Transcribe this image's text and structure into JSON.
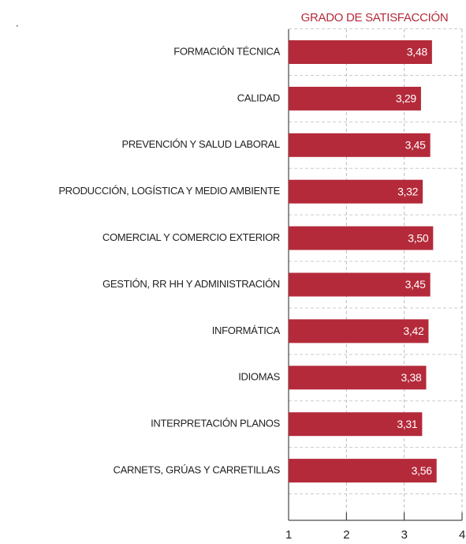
{
  "chart_data": {
    "type": "barh",
    "marker": ".",
    "title": "GRADO DE SATISFACCIÓN",
    "categories": [
      "FORMACIÓN TÉCNICA",
      "CALIDAD",
      "PREVENCIÓN Y SALUD LABORAL",
      "PRODUCCIÓN, LOGÍSTICA Y MEDIO AMBIENTE",
      "COMERCIAL Y COMERCIO EXTERIOR",
      "GESTIÓN, RR HH Y ADMINISTRACIÓN",
      "INFORMÁTICA",
      "IDIOMAS",
      "INTERPRETACIÓN PLANOS",
      "CARNETS, GRÚAS Y CARRETILLAS"
    ],
    "values": [
      3.48,
      3.29,
      3.45,
      3.32,
      3.5,
      3.45,
      3.42,
      3.38,
      3.31,
      3.56
    ],
    "value_labels": [
      "3,48",
      "3,29",
      "3,45",
      "3,32",
      "3,50",
      "3,45",
      "3,42",
      "3,38",
      "3,31",
      "3,56"
    ],
    "color": "#b42a3a",
    "xlim": [
      1,
      4
    ],
    "xticks": [
      1,
      2,
      3,
      4
    ],
    "grid": true
  }
}
